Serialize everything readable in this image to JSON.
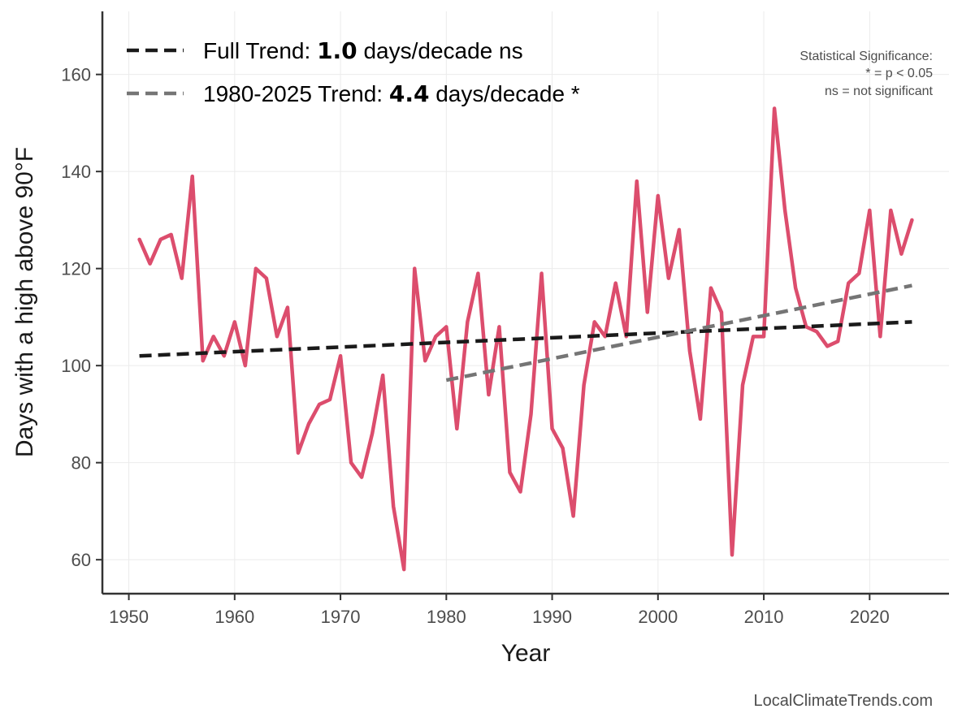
{
  "chart_data": {
    "type": "line",
    "title": "",
    "xlabel": "Year",
    "ylabel": "Days with a high above 90°F",
    "xlim": [
      1947.5,
      2027.5
    ],
    "ylim": [
      53,
      173
    ],
    "x_ticks": [
      1950,
      1960,
      1970,
      1980,
      1990,
      2000,
      2010,
      2020
    ],
    "y_ticks": [
      60,
      80,
      100,
      120,
      140,
      160
    ],
    "grid": true,
    "legend_position": "top-left",
    "series": [
      {
        "name": "Days above 90°F",
        "color": "#dc4d6d",
        "x": [
          1951,
          1952,
          1953,
          1954,
          1955,
          1956,
          1957,
          1958,
          1959,
          1960,
          1961,
          1962,
          1963,
          1964,
          1965,
          1966,
          1967,
          1968,
          1969,
          1970,
          1971,
          1972,
          1973,
          1974,
          1975,
          1976,
          1977,
          1978,
          1979,
          1980,
          1981,
          1982,
          1983,
          1984,
          1985,
          1986,
          1987,
          1988,
          1989,
          1990,
          1991,
          1992,
          1993,
          1994,
          1995,
          1996,
          1997,
          1998,
          1999,
          2000,
          2001,
          2002,
          2003,
          2004,
          2005,
          2006,
          2007,
          2008,
          2009,
          2010,
          2011,
          2012,
          2013,
          2014,
          2015,
          2016,
          2017,
          2018,
          2019,
          2020,
          2021,
          2022,
          2023,
          2024
        ],
        "values": [
          126,
          121,
          126,
          127,
          118,
          139,
          101,
          106,
          102,
          109,
          100,
          120,
          118,
          106,
          112,
          82,
          88,
          92,
          93,
          102,
          80,
          77,
          86,
          98,
          71,
          58,
          120,
          101,
          106,
          108,
          87,
          109,
          119,
          94,
          108,
          78,
          74,
          90,
          119,
          87,
          83,
          69,
          96,
          109,
          106,
          117,
          106,
          138,
          111,
          135,
          118,
          128,
          103,
          89,
          116,
          111,
          61,
          96,
          106,
          106,
          153,
          132,
          116,
          108,
          107,
          104,
          105,
          117,
          119,
          132,
          106,
          132,
          123,
          130
        ]
      }
    ],
    "trends": [
      {
        "name": "Full Trend",
        "color": "#1a1a1a",
        "x": [
          1951,
          2024
        ],
        "y": [
          102.0,
          109.0
        ]
      },
      {
        "name": "1980-2025 Trend",
        "color": "#757575",
        "x": [
          1980,
          2024
        ],
        "y": [
          97.0,
          116.5
        ]
      }
    ],
    "legend": [
      {
        "prefix": "Full Trend: ",
        "value": "1.0",
        "suffix": " days/decade ns",
        "color": "#1a1a1a"
      },
      {
        "prefix": "1980-2025 Trend: ",
        "value": "4.4",
        "suffix": " days/decade *",
        "color": "#757575"
      }
    ],
    "annotations": {
      "significance_title": "Statistical Significance:",
      "significance_line1": "* = p < 0.05",
      "significance_line2": "ns = not significant",
      "credit": "LocalClimateTrends.com"
    }
  }
}
